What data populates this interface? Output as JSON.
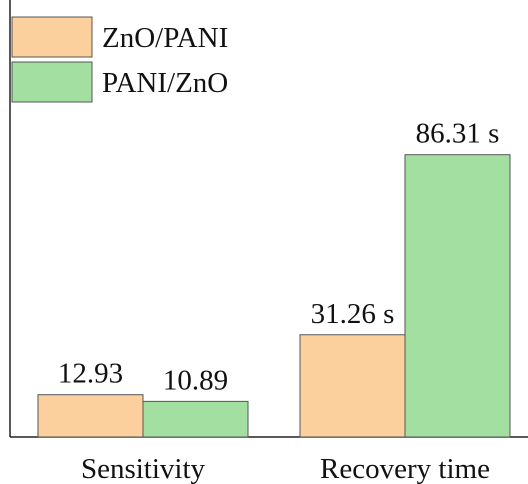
{
  "chart_data": {
    "type": "bar",
    "categories": [
      "Sensitivity",
      "Recovery time"
    ],
    "series": [
      {
        "name": "ZnO/PANI",
        "color": "#fcd09c",
        "values": [
          12.93,
          31.26
        ],
        "value_labels": [
          "12.93",
          "31.26 s"
        ]
      },
      {
        "name": "PANI/ZnO",
        "color": "#a4dfa2",
        "values": [
          10.89,
          86.31
        ],
        "value_labels": [
          "10.89",
          "86.31 s"
        ]
      }
    ],
    "ylim": [
      0,
      133
    ],
    "legend": "upper left"
  }
}
